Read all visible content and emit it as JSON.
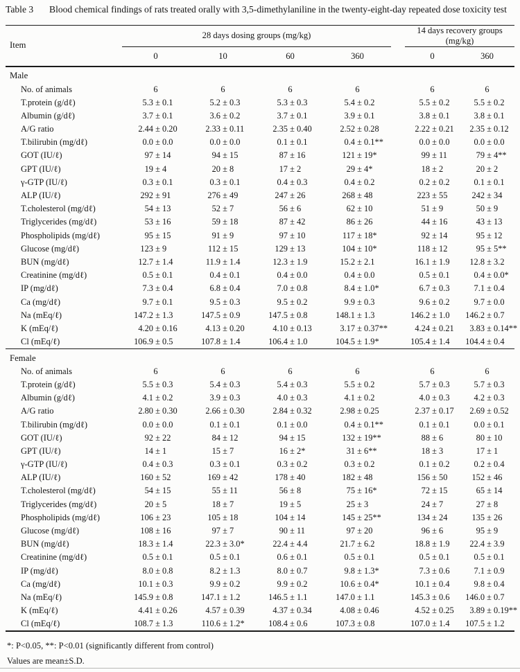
{
  "caption": {
    "label": "Table 3",
    "text": "Blood chemical findings of rats treated orally with 3,5-dimethylaniline in the twenty-eight-day repeated dose toxicity test"
  },
  "header": {
    "item_label": "Item",
    "groups": [
      {
        "label": "28 days dosing groups (mg/kg)",
        "columns": [
          "0",
          "10",
          "60",
          "360"
        ]
      },
      {
        "label": "14 days recovery groups (mg/kg)",
        "columns": [
          "0",
          "360"
        ]
      }
    ]
  },
  "chart_data": {
    "type": "table",
    "title": "Blood chemical findings of rats treated orally with 3,5-dimethylaniline in the twenty-eight-day repeated dose toxicity test",
    "columns": [
      "28d dosing 0 mg/kg",
      "28d dosing 10 mg/kg",
      "28d dosing 60 mg/kg",
      "28d dosing 360 mg/kg",
      "14d recovery 0 mg/kg",
      "14d recovery 360 mg/kg"
    ]
  },
  "sections": [
    {
      "label": "Male",
      "rows": [
        {
          "item": "No. of animals",
          "values": [
            "6",
            "6",
            "6",
            "6",
            "6",
            "6"
          ]
        },
        {
          "item": "T.protein (g/dℓ)",
          "values": [
            "5.3 ± 0.1",
            "5.2 ± 0.3",
            "5.3 ± 0.3",
            "5.4 ± 0.2",
            "5.5 ± 0.2",
            "5.5 ± 0.2"
          ]
        },
        {
          "item": "Albumin (g/dℓ)",
          "values": [
            "3.7 ± 0.1",
            "3.6 ± 0.2",
            "3.7 ± 0.1",
            "3.9 ± 0.1",
            "3.8 ± 0.1",
            "3.8 ± 0.1"
          ]
        },
        {
          "item": "A/G ratio",
          "values": [
            "2.44 ± 0.20",
            "2.33 ± 0.11",
            "2.35 ± 0.40",
            "2.52 ± 0.28",
            "2.22 ± 0.21",
            "2.35 ± 0.12"
          ]
        },
        {
          "item": "T.bilirubin (mg/dℓ)",
          "values": [
            "0.0 ± 0.0",
            "0.0 ± 0.0",
            "0.1 ± 0.1",
            "0.4 ± 0.1**",
            "0.0 ± 0.0",
            "0.0 ± 0.0"
          ]
        },
        {
          "item": "GOT (IU/ℓ)",
          "values": [
            "97 ± 14",
            "94 ± 15",
            "87 ± 16",
            "121 ± 19*",
            "99 ± 11",
            "79 ± 4**"
          ]
        },
        {
          "item": "GPT (IU/ℓ)",
          "values": [
            "19 ± 4",
            "20 ± 8",
            "17 ± 2",
            "29 ± 4*",
            "18 ± 2",
            "20 ± 2"
          ]
        },
        {
          "item": "γ-GTP (IU/ℓ)",
          "values": [
            "0.3 ± 0.1",
            "0.3 ± 0.1",
            "0.4 ± 0.3",
            "0.4 ± 0.2",
            "0.2 ± 0.2",
            "0.1 ± 0.1"
          ]
        },
        {
          "item": "ALP (IU/ℓ)",
          "values": [
            "292 ± 91",
            "276 ± 49",
            "247 ± 26",
            "268 ± 48",
            "223 ± 55",
            "242 ± 34"
          ]
        },
        {
          "item": "T.cholesterol (mg/dℓ)",
          "values": [
            "54 ± 13",
            "52 ± 7",
            "56 ± 6",
            "62 ± 10",
            "51 ± 9",
            "50 ± 9"
          ]
        },
        {
          "item": "Triglycerides (mg/dℓ)",
          "values": [
            "53 ± 16",
            "59 ± 18",
            "87 ± 42",
            "86 ± 26",
            "44 ± 16",
            "43 ± 13"
          ]
        },
        {
          "item": "Phospholipids (mg/dℓ)",
          "values": [
            "95 ± 15",
            "91 ± 9",
            "97 ± 10",
            "117 ± 18*",
            "92 ± 14",
            "95 ± 12"
          ]
        },
        {
          "item": "Glucose (mg/dℓ)",
          "values": [
            "123 ± 9",
            "112 ± 15",
            "129 ± 13",
            "104 ± 10*",
            "118 ± 12",
            "95 ± 5**"
          ]
        },
        {
          "item": "BUN (mg/dℓ)",
          "values": [
            "12.7 ± 1.4",
            "11.9 ± 1.4",
            "12.3 ± 1.9",
            "15.2 ± 2.1",
            "16.1 ± 1.9",
            "12.8 ± 3.2"
          ]
        },
        {
          "item": "Creatinine (mg/dℓ)",
          "values": [
            "0.5 ± 0.1",
            "0.4 ± 0.1",
            "0.4 ± 0.0",
            "0.4 ± 0.0",
            "0.5 ± 0.1",
            "0.4 ± 0.0*"
          ]
        },
        {
          "item": "IP (mg/dℓ)",
          "values": [
            "7.3 ± 0.4",
            "6.8 ± 0.4",
            "7.0 ± 0.8",
            "8.4 ± 1.0*",
            "6.7 ± 0.3",
            "7.1 ± 0.4"
          ]
        },
        {
          "item": "Ca (mg/dℓ)",
          "values": [
            "9.7 ± 0.1",
            "9.5 ± 0.3",
            "9.5 ± 0.2",
            "9.9 ± 0.3",
            "9.6 ± 0.2",
            "9.7 ± 0.0"
          ]
        },
        {
          "item": "Na (mEq/ℓ)",
          "values": [
            "147.2 ± 1.3",
            "147.5 ± 0.9",
            "147.5 ± 0.8",
            "148.1 ± 1.3",
            "146.2 ± 1.0",
            "146.2 ± 0.7"
          ]
        },
        {
          "item": "K (mEq/ℓ)",
          "values": [
            "4.20 ± 0.16",
            "4.13 ± 0.20",
            "4.10 ± 0.13",
            "3.17 ± 0.37**",
            "4.24 ± 0.21",
            "3.83 ± 0.14**"
          ]
        },
        {
          "item": "Cl (mEq/ℓ)",
          "values": [
            "106.9 ± 0.5",
            "107.8 ± 1.4",
            "106.4 ± 1.0",
            "104.5 ± 1.9*",
            "105.4 ± 1.4",
            "104.4 ± 0.4"
          ]
        }
      ]
    },
    {
      "label": "Female",
      "rows": [
        {
          "item": "No. of animals",
          "values": [
            "6",
            "6",
            "6",
            "6",
            "6",
            "6"
          ]
        },
        {
          "item": "T.protein (g/dℓ)",
          "values": [
            "5.5 ± 0.3",
            "5.4 ± 0.3",
            "5.4 ± 0.3",
            "5.5 ± 0.2",
            "5.7 ± 0.3",
            "5.7 ± 0.3"
          ]
        },
        {
          "item": "Albumin (g/dℓ)",
          "values": [
            "4.1 ± 0.2",
            "3.9 ± 0.3",
            "4.0 ± 0.3",
            "4.1 ± 0.2",
            "4.0 ± 0.3",
            "4.2 ± 0.3"
          ]
        },
        {
          "item": "A/G ratio",
          "values": [
            "2.80 ± 0.30",
            "2.66 ± 0.30",
            "2.84 ± 0.32",
            "2.98 ± 0.25",
            "2.37 ± 0.17",
            "2.69 ± 0.52"
          ]
        },
        {
          "item": "T.bilirubin (mg/dℓ)",
          "values": [
            "0.0 ± 0.0",
            "0.1 ± 0.1",
            "0.1 ± 0.0",
            "0.4 ± 0.1**",
            "0.1 ± 0.1",
            "0.0 ± 0.1"
          ]
        },
        {
          "item": "GOT (IU/ℓ)",
          "values": [
            "92 ± 22",
            "84 ± 12",
            "94 ± 15",
            "132 ± 19**",
            "88 ± 6",
            "80 ± 10"
          ]
        },
        {
          "item": "GPT (IU/ℓ)",
          "values": [
            "14 ± 1",
            "15 ± 7",
            "16 ± 2*",
            "31 ± 6**",
            "18 ± 3",
            "17 ± 1"
          ]
        },
        {
          "item": "γ-GTP (IU/ℓ)",
          "values": [
            "0.4 ± 0.3",
            "0.3 ± 0.1",
            "0.3 ± 0.2",
            "0.3 ± 0.2",
            "0.1 ± 0.2",
            "0.2 ± 0.4"
          ]
        },
        {
          "item": "ALP (IU/ℓ)",
          "values": [
            "160 ± 52",
            "169 ± 42",
            "178 ± 40",
            "182 ± 48",
            "156 ± 50",
            "152 ± 46"
          ]
        },
        {
          "item": "T.cholesterol (mg/dℓ)",
          "values": [
            "54 ± 15",
            "55 ± 11",
            "56 ± 8",
            "75 ± 16*",
            "72 ± 15",
            "65 ± 14"
          ]
        },
        {
          "item": "Triglycerides (mg/dℓ)",
          "values": [
            "20 ± 5",
            "18 ± 7",
            "19 ± 5",
            "25 ± 3",
            "24 ± 7",
            "27 ± 8"
          ]
        },
        {
          "item": "Phospholipids (mg/dℓ)",
          "values": [
            "106 ± 23",
            "105 ± 18",
            "104 ± 14",
            "145 ± 25**",
            "134 ± 24",
            "135 ± 26"
          ]
        },
        {
          "item": "Glucose (mg/dℓ)",
          "values": [
            "108 ± 16",
            "97 ± 7",
            "90 ± 11",
            "97 ± 20",
            "96 ± 6",
            "95 ± 9"
          ]
        },
        {
          "item": "BUN (mg/dℓ)",
          "values": [
            "18.3 ± 1.4",
            "22.3 ± 3.0*",
            "22.4 ± 4.4",
            "21.7 ± 6.2",
            "18.8 ± 1.9",
            "22.4 ± 3.9"
          ]
        },
        {
          "item": "Creatinine (mg/dℓ)",
          "values": [
            "0.5 ± 0.1",
            "0.5 ± 0.1",
            "0.6 ± 0.1",
            "0.5 ± 0.1",
            "0.5 ± 0.1",
            "0.5 ± 0.1"
          ]
        },
        {
          "item": "IP (mg/dℓ)",
          "values": [
            "8.0 ± 0.8",
            "8.2 ± 1.3",
            "8.0 ± 0.7",
            "9.8 ± 1.3*",
            "7.3 ± 0.6",
            "7.1 ± 0.9"
          ]
        },
        {
          "item": "Ca (mg/dℓ)",
          "values": [
            "10.1 ± 0.3",
            "9.9 ± 0.2",
            "9.9 ± 0.2",
            "10.6 ± 0.4*",
            "10.1 ± 0.4",
            "9.8 ± 0.4"
          ]
        },
        {
          "item": "Na (mEq/ℓ)",
          "values": [
            "145.9 ± 0.8",
            "147.1 ± 1.2",
            "146.5 ± 1.1",
            "147.0 ± 1.1",
            "145.3 ± 0.6",
            "146.0 ± 0.7"
          ]
        },
        {
          "item": "K (mEq/ℓ)",
          "values": [
            "4.41 ± 0.26",
            "4.57 ± 0.39",
            "4.37 ± 0.34",
            "4.08 ± 0.46",
            "4.52 ± 0.25",
            "3.89 ± 0.19**"
          ]
        },
        {
          "item": "Cl (mEq/ℓ)",
          "values": [
            "108.7 ± 1.3",
            "110.6 ± 1.2*",
            "108.4 ± 0.6",
            "107.3 ± 0.8",
            "107.0 ± 1.4",
            "107.5 ± 1.2"
          ]
        }
      ]
    }
  ],
  "footnotes": [
    "*: P<0.05, **: P<0.01 (significantly different from control)",
    "Values are mean±S.D."
  ]
}
